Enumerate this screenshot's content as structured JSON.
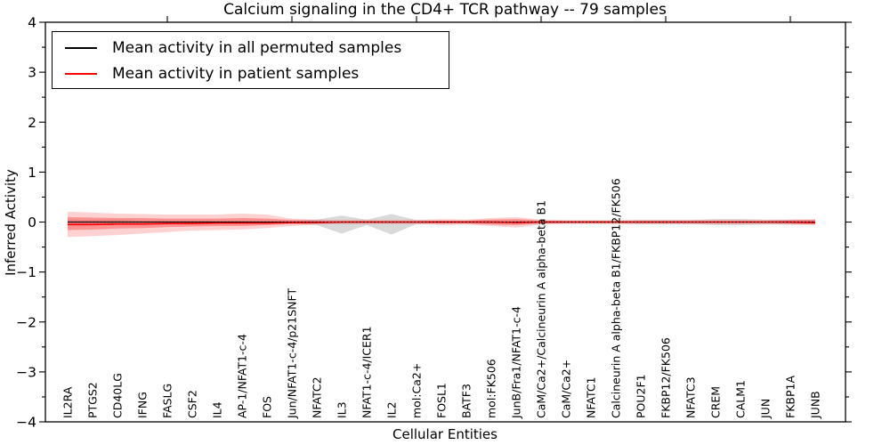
{
  "figure": {
    "background": "#ffffff",
    "frame_color": "#000000"
  },
  "chart_data": {
    "type": "line",
    "title": "Calcium signaling in the CD4+ TCR pathway -- 79 samples",
    "xlabel": "Cellular Entities",
    "ylabel": "Inferred Activity",
    "ylim": [
      -4,
      4
    ],
    "yticks": [
      -4,
      -3,
      -2,
      -1,
      0,
      1,
      2,
      3,
      4
    ],
    "ytick_labels": [
      "−4",
      "−3",
      "−2",
      "−1",
      "0",
      "1",
      "2",
      "3",
      "4"
    ],
    "yminorticks": [
      -3.5,
      -2.5,
      -1.5,
      -0.5,
      0.5,
      1.5,
      2.5,
      3.5
    ],
    "xticks_top_entity_numbers": [
      5,
      10,
      15,
      20,
      25,
      30
    ],
    "grid": false,
    "legend_position": "upper left",
    "categories": [
      "IL2RA",
      "PTGS2",
      "CD40LG",
      "IFNG",
      "FASLG",
      "CSF2",
      "IL4",
      "AP-1/NFAT1-c-4",
      "FOS",
      "Jun/NFAT1-c-4/p21SNFT",
      "NFATC2",
      "IL3",
      "NFAT1-c-4/ICER1",
      "IL2",
      "mol:Ca2+",
      "FOSL1",
      "BATF3",
      "mol:FK506",
      "JunB/Fra1/NFAT1-c-4",
      "CaM/Ca2+/Calcineurin A alpha-beta B1",
      "CaM/Ca2+",
      "NFATC1",
      "Calcineurin A alpha-beta B1/FKBP12/FK506",
      "POU2F1",
      "FKBP12/FK506",
      "NFATC3",
      "CREM",
      "CALM1",
      "JUN",
      "FKBP1A",
      "JUNB"
    ],
    "series": [
      {
        "name": "Mean activity in all permuted samples",
        "color": "#000000",
        "width": 1.1,
        "values": [
          0,
          0,
          0,
          0,
          0,
          0,
          0,
          0,
          0,
          0,
          0,
          0,
          0,
          0,
          0,
          0,
          0,
          0,
          0,
          0,
          0,
          0,
          0,
          0,
          0,
          0,
          0,
          0,
          0,
          0,
          0
        ]
      },
      {
        "name": "Mean activity in patient samples",
        "color": "#ff0000",
        "width": 1.6,
        "values": [
          -0.05,
          -0.05,
          -0.04,
          -0.04,
          -0.03,
          -0.03,
          -0.02,
          -0.02,
          -0.02,
          -0.01,
          -0.01,
          0,
          0,
          0,
          0,
          0,
          0,
          0,
          -0.01,
          0,
          0,
          0,
          0,
          0,
          0,
          0,
          0,
          0,
          0,
          0,
          -0.01
        ]
      }
    ],
    "baseline": {
      "y": 0,
      "style": "dotted",
      "color": "#000000"
    },
    "bands": [
      {
        "name": "permuted-samples-range",
        "color": "rgba(120,120,120,0.28)",
        "top": [
          0.04,
          0.04,
          0.04,
          0.03,
          0.03,
          0.03,
          0.03,
          0.03,
          0.03,
          0.03,
          0.05,
          0.13,
          0.05,
          0.16,
          0.04,
          0.03,
          0.03,
          0.03,
          0.03,
          0.03,
          0.03,
          0.03,
          0.03,
          0.04,
          0.04,
          0.04,
          0.06,
          0.06,
          0.05,
          0.05,
          0.04
        ],
        "bottom": [
          -0.04,
          -0.04,
          -0.04,
          -0.03,
          -0.03,
          -0.03,
          -0.03,
          -0.03,
          -0.03,
          -0.03,
          -0.06,
          -0.23,
          -0.06,
          -0.25,
          -0.04,
          -0.03,
          -0.03,
          -0.03,
          -0.03,
          -0.03,
          -0.03,
          -0.03,
          -0.03,
          -0.04,
          -0.04,
          -0.04,
          -0.06,
          -0.06,
          -0.05,
          -0.05,
          -0.04
        ]
      },
      {
        "name": "patient-samples-outer-range",
        "color": "rgba(255,0,0,0.18)",
        "top": [
          0.21,
          0.19,
          0.17,
          0.16,
          0.15,
          0.15,
          0.15,
          0.17,
          0.15,
          0.07,
          0.05,
          0.04,
          0.04,
          0.04,
          0.04,
          0.06,
          0.05,
          0.08,
          0.1,
          0.05,
          0.04,
          0.04,
          0.04,
          0.04,
          0.04,
          0.04,
          0.04,
          0.04,
          0.04,
          0.05,
          0.06
        ],
        "bottom": [
          -0.3,
          -0.28,
          -0.26,
          -0.23,
          -0.2,
          -0.17,
          -0.16,
          -0.15,
          -0.12,
          -0.08,
          -0.05,
          -0.04,
          -0.04,
          -0.04,
          -0.04,
          -0.06,
          -0.05,
          -0.08,
          -0.11,
          -0.05,
          -0.04,
          -0.04,
          -0.04,
          -0.04,
          -0.04,
          -0.04,
          -0.04,
          -0.04,
          -0.04,
          -0.05,
          -0.06
        ]
      },
      {
        "name": "patient-samples-inner-range",
        "color": "rgba(255,0,0,0.30)",
        "top": [
          0.1,
          0.09,
          0.08,
          0.08,
          0.07,
          0.07,
          0.07,
          0.08,
          0.07,
          0.04,
          0.03,
          0.02,
          0.02,
          0.02,
          0.02,
          0.03,
          0.03,
          0.05,
          0.06,
          0.03,
          0.02,
          0.02,
          0.02,
          0.02,
          0.02,
          0.02,
          0.02,
          0.02,
          0.02,
          0.03,
          0.04
        ],
        "bottom": [
          -0.16,
          -0.15,
          -0.13,
          -0.12,
          -0.1,
          -0.09,
          -0.08,
          -0.08,
          -0.06,
          -0.04,
          -0.03,
          -0.02,
          -0.02,
          -0.02,
          -0.02,
          -0.03,
          -0.03,
          -0.05,
          -0.06,
          -0.03,
          -0.02,
          -0.02,
          -0.02,
          -0.02,
          -0.02,
          -0.02,
          -0.02,
          -0.02,
          -0.02,
          -0.03,
          -0.04
        ]
      }
    ]
  }
}
